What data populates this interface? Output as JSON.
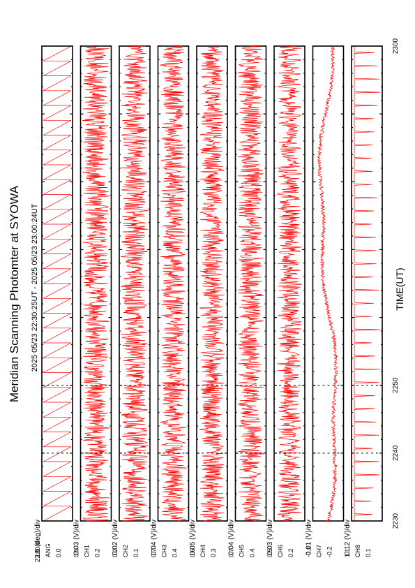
{
  "title": "Meridian Scanning Photomter at SYOWA",
  "subtitle": "2025 05/23 22:30:25UT - 2025 05/23 23:00:24UT",
  "xlabel": "TIME(UT)",
  "trace_color": "#ff0000",
  "chart_data": {
    "type": "line",
    "orientation": "rotated-90-clockwise",
    "x_range": [
      2230,
      2300
    ],
    "x_major_ticks": [
      "2230",
      "2240",
      "2250",
      "2300"
    ],
    "panels": [
      {
        "name": "ANG",
        "scale": "22.5 (deg)/div",
        "tick_top": "180.0",
        "tick_bottom": "0.0",
        "pattern": "sawtooth",
        "cycles": 32
      },
      {
        "name": "CH1",
        "scale": "0.03 (V)/div",
        "tick_top": "0.5",
        "tick_bottom": "0.2",
        "pattern": "noise",
        "amp": 0.4
      },
      {
        "name": "CH2",
        "scale": "0.02 (V)/div",
        "tick_top": "0.2",
        "tick_bottom": "0.1",
        "pattern": "noise",
        "amp": 0.4
      },
      {
        "name": "CH3",
        "scale": "0.04 (V)/div",
        "tick_top": "0.7",
        "tick_bottom": "0.4",
        "pattern": "noise",
        "amp": 0.38
      },
      {
        "name": "CH4",
        "scale": "0.05 (V)/div",
        "tick_top": "0.6",
        "tick_bottom": "0.3",
        "pattern": "noise",
        "amp": 0.36
      },
      {
        "name": "CH5",
        "scale": "0.04 (V)/div",
        "tick_top": "0.7",
        "tick_bottom": "0.4",
        "pattern": "noise",
        "amp": 0.38
      },
      {
        "name": "CH6",
        "scale": "0.03 (V)/div",
        "tick_top": "0.5",
        "tick_bottom": "0.2",
        "pattern": "noise",
        "amp": 0.36
      },
      {
        "name": "CH7",
        "scale": "0.01 (V)/div",
        "tick_top": "-0.1",
        "tick_bottom": "-0.2",
        "pattern": "smooth",
        "amp": 0.12
      },
      {
        "name": "CH8",
        "scale": "0.12 (V)/div",
        "tick_top": "1.1",
        "tick_bottom": "0.1",
        "pattern": "spikes",
        "cycles": 36
      }
    ]
  }
}
